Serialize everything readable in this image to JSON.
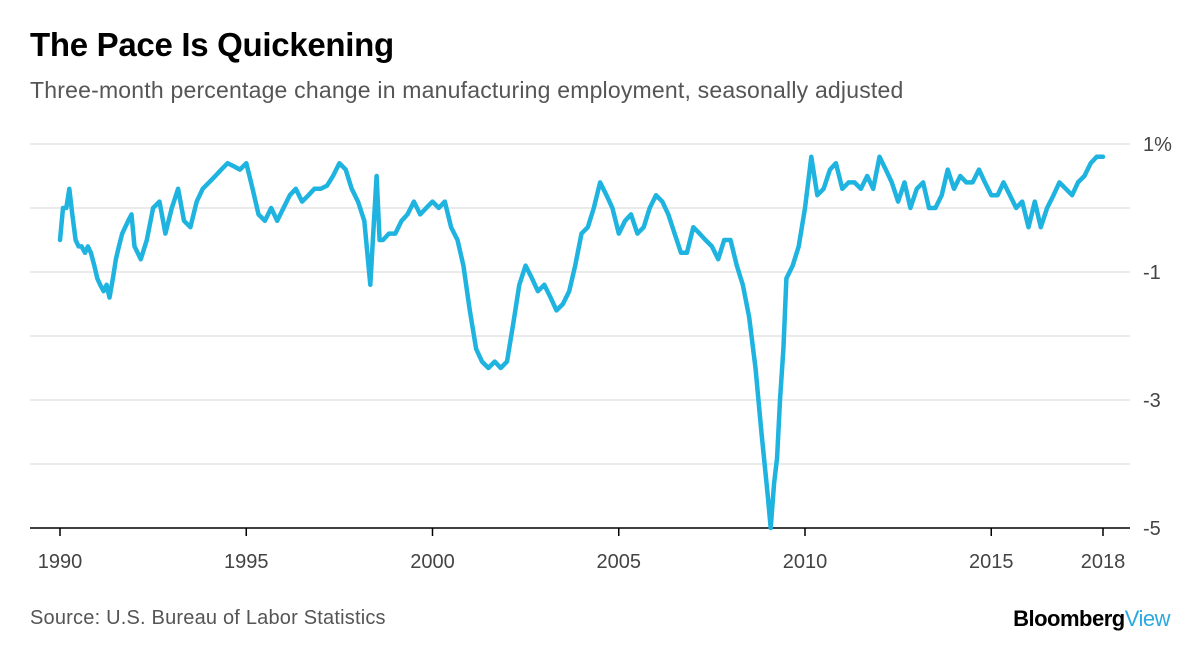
{
  "header": {
    "title": "The Pace Is Quickening",
    "subtitle": "Three-month percentage change in manufacturing employment, seasonally adjusted"
  },
  "footer": {
    "source": "Source: U.S. Bureau of Labor Statistics",
    "brand_main": "Bloomberg",
    "brand_accent": "View"
  },
  "colors": {
    "line": "#1fb3e0",
    "grid": "#e3e3e3",
    "axis": "#000000",
    "brand_accent": "#2aa9e0"
  },
  "chart_data": {
    "type": "line",
    "title": "The Pace Is Quickening",
    "subtitle": "Three-month percentage change in manufacturing employment, seasonally adjusted",
    "xlabel": "",
    "ylabel": "",
    "xlim": [
      1990,
      2018
    ],
    "ylim": [
      -5,
      1
    ],
    "y_ticks": [
      1,
      0,
      -1,
      -2,
      -3,
      -4,
      -5
    ],
    "y_tick_labels": [
      "1%",
      "",
      "-1",
      "",
      "-3",
      "",
      "-5"
    ],
    "x_ticks": [
      1990,
      1995,
      2000,
      2005,
      2010,
      2015,
      2018
    ],
    "x_tick_labels": [
      "1990",
      "1995",
      "2000",
      "2005",
      "2010",
      "2015",
      "2018"
    ],
    "grid": "horizontal",
    "series": [
      {
        "x": [
          1990.0,
          1990.08,
          1990.17,
          1990.25,
          1990.33,
          1990.42,
          1990.5,
          1990.58,
          1990.67,
          1990.75,
          1990.83,
          1990.92,
          1991.0,
          1991.08,
          1991.17,
          1991.25,
          1991.33,
          1991.42,
          1991.5,
          1991.58,
          1991.67,
          1991.75,
          1991.83,
          1991.92,
          1992.0,
          1992.17,
          1992.33,
          1992.5,
          1992.67,
          1992.83,
          1993.0,
          1993.17,
          1993.33,
          1993.5,
          1993.67,
          1993.83,
          1994.0,
          1994.17,
          1994.33,
          1994.5,
          1994.67,
          1994.83,
          1995.0,
          1995.17,
          1995.33,
          1995.5,
          1995.67,
          1995.83,
          1996.0,
          1996.17,
          1996.33,
          1996.5,
          1996.67,
          1996.83,
          1997.0,
          1997.17,
          1997.33,
          1997.5,
          1997.67,
          1997.83,
          1998.0,
          1998.17,
          1998.33,
          1998.42,
          1998.5,
          1998.58,
          1998.67,
          1998.83,
          1999.0,
          1999.17,
          1999.33,
          1999.5,
          1999.67,
          1999.83,
          2000.0,
          2000.17,
          2000.33,
          2000.5,
          2000.67,
          2000.83,
          2001.0,
          2001.17,
          2001.33,
          2001.5,
          2001.67,
          2001.83,
          2002.0,
          2002.17,
          2002.33,
          2002.5,
          2002.67,
          2002.83,
          2003.0,
          2003.17,
          2003.33,
          2003.5,
          2003.67,
          2003.83,
          2004.0,
          2004.17,
          2004.33,
          2004.5,
          2004.67,
          2004.83,
          2005.0,
          2005.17,
          2005.33,
          2005.5,
          2005.67,
          2005.83,
          2006.0,
          2006.17,
          2006.33,
          2006.5,
          2006.67,
          2006.83,
          2007.0,
          2007.17,
          2007.33,
          2007.5,
          2007.67,
          2007.83,
          2008.0,
          2008.17,
          2008.33,
          2008.5,
          2008.67,
          2008.83,
          2009.0,
          2009.08,
          2009.17,
          2009.25,
          2009.33,
          2009.42,
          2009.5,
          2009.67,
          2009.83,
          2010.0,
          2010.17,
          2010.33,
          2010.5,
          2010.67,
          2010.83,
          2011.0,
          2011.17,
          2011.33,
          2011.5,
          2011.67,
          2011.83,
          2012.0,
          2012.17,
          2012.33,
          2012.5,
          2012.67,
          2012.83,
          2013.0,
          2013.17,
          2013.33,
          2013.5,
          2013.67,
          2013.83,
          2014.0,
          2014.17,
          2014.33,
          2014.5,
          2014.67,
          2014.83,
          2015.0,
          2015.17,
          2015.33,
          2015.5,
          2015.67,
          2015.83,
          2016.0,
          2016.17,
          2016.33,
          2016.5,
          2016.67,
          2016.83,
          2017.0,
          2017.17,
          2017.33,
          2017.5,
          2017.67,
          2017.83,
          2018.0
        ],
        "y": [
          -0.5,
          0.0,
          0.0,
          0.3,
          -0.1,
          -0.5,
          -0.6,
          -0.6,
          -0.7,
          -0.6,
          -0.7,
          -0.9,
          -1.1,
          -1.2,
          -1.3,
          -1.2,
          -1.4,
          -1.1,
          -0.8,
          -0.6,
          -0.4,
          -0.3,
          -0.2,
          -0.1,
          -0.6,
          -0.8,
          -0.5,
          0.0,
          0.1,
          -0.4,
          0.0,
          0.3,
          -0.2,
          -0.3,
          0.1,
          0.3,
          0.4,
          0.5,
          0.6,
          0.7,
          0.65,
          0.6,
          0.7,
          0.3,
          -0.1,
          -0.2,
          0.0,
          -0.2,
          0.0,
          0.2,
          0.3,
          0.1,
          0.2,
          0.3,
          0.3,
          0.35,
          0.5,
          0.7,
          0.6,
          0.3,
          0.1,
          -0.2,
          -1.2,
          -0.3,
          0.5,
          -0.5,
          -0.5,
          -0.4,
          -0.4,
          -0.2,
          -0.1,
          0.1,
          -0.1,
          0.0,
          0.1,
          0.0,
          0.1,
          -0.3,
          -0.5,
          -0.9,
          -1.6,
          -2.2,
          -2.4,
          -2.5,
          -2.4,
          -2.5,
          -2.4,
          -1.8,
          -1.2,
          -0.9,
          -1.1,
          -1.3,
          -1.2,
          -1.4,
          -1.6,
          -1.5,
          -1.3,
          -0.9,
          -0.4,
          -0.3,
          0.0,
          0.4,
          0.2,
          0.0,
          -0.4,
          -0.2,
          -0.1,
          -0.4,
          -0.3,
          0.0,
          0.2,
          0.1,
          -0.1,
          -0.4,
          -0.7,
          -0.7,
          -0.3,
          -0.4,
          -0.5,
          -0.6,
          -0.8,
          -0.5,
          -0.5,
          -0.9,
          -1.2,
          -1.7,
          -2.5,
          -3.5,
          -4.5,
          -5.0,
          -4.3,
          -3.9,
          -3.0,
          -2.2,
          -1.1,
          -0.9,
          -0.6,
          0.0,
          0.8,
          0.2,
          0.3,
          0.6,
          0.7,
          0.3,
          0.4,
          0.4,
          0.3,
          0.5,
          0.3,
          0.8,
          0.6,
          0.4,
          0.1,
          0.4,
          0.0,
          0.3,
          0.4,
          0.0,
          0.0,
          0.2,
          0.6,
          0.3,
          0.5,
          0.4,
          0.4,
          0.6,
          0.4,
          0.2,
          0.2,
          0.4,
          0.2,
          0.0,
          0.1,
          -0.3,
          0.1,
          -0.3,
          0.0,
          0.2,
          0.4,
          0.3,
          0.2,
          0.4,
          0.5,
          0.7,
          0.8,
          0.8
        ]
      }
    ]
  }
}
